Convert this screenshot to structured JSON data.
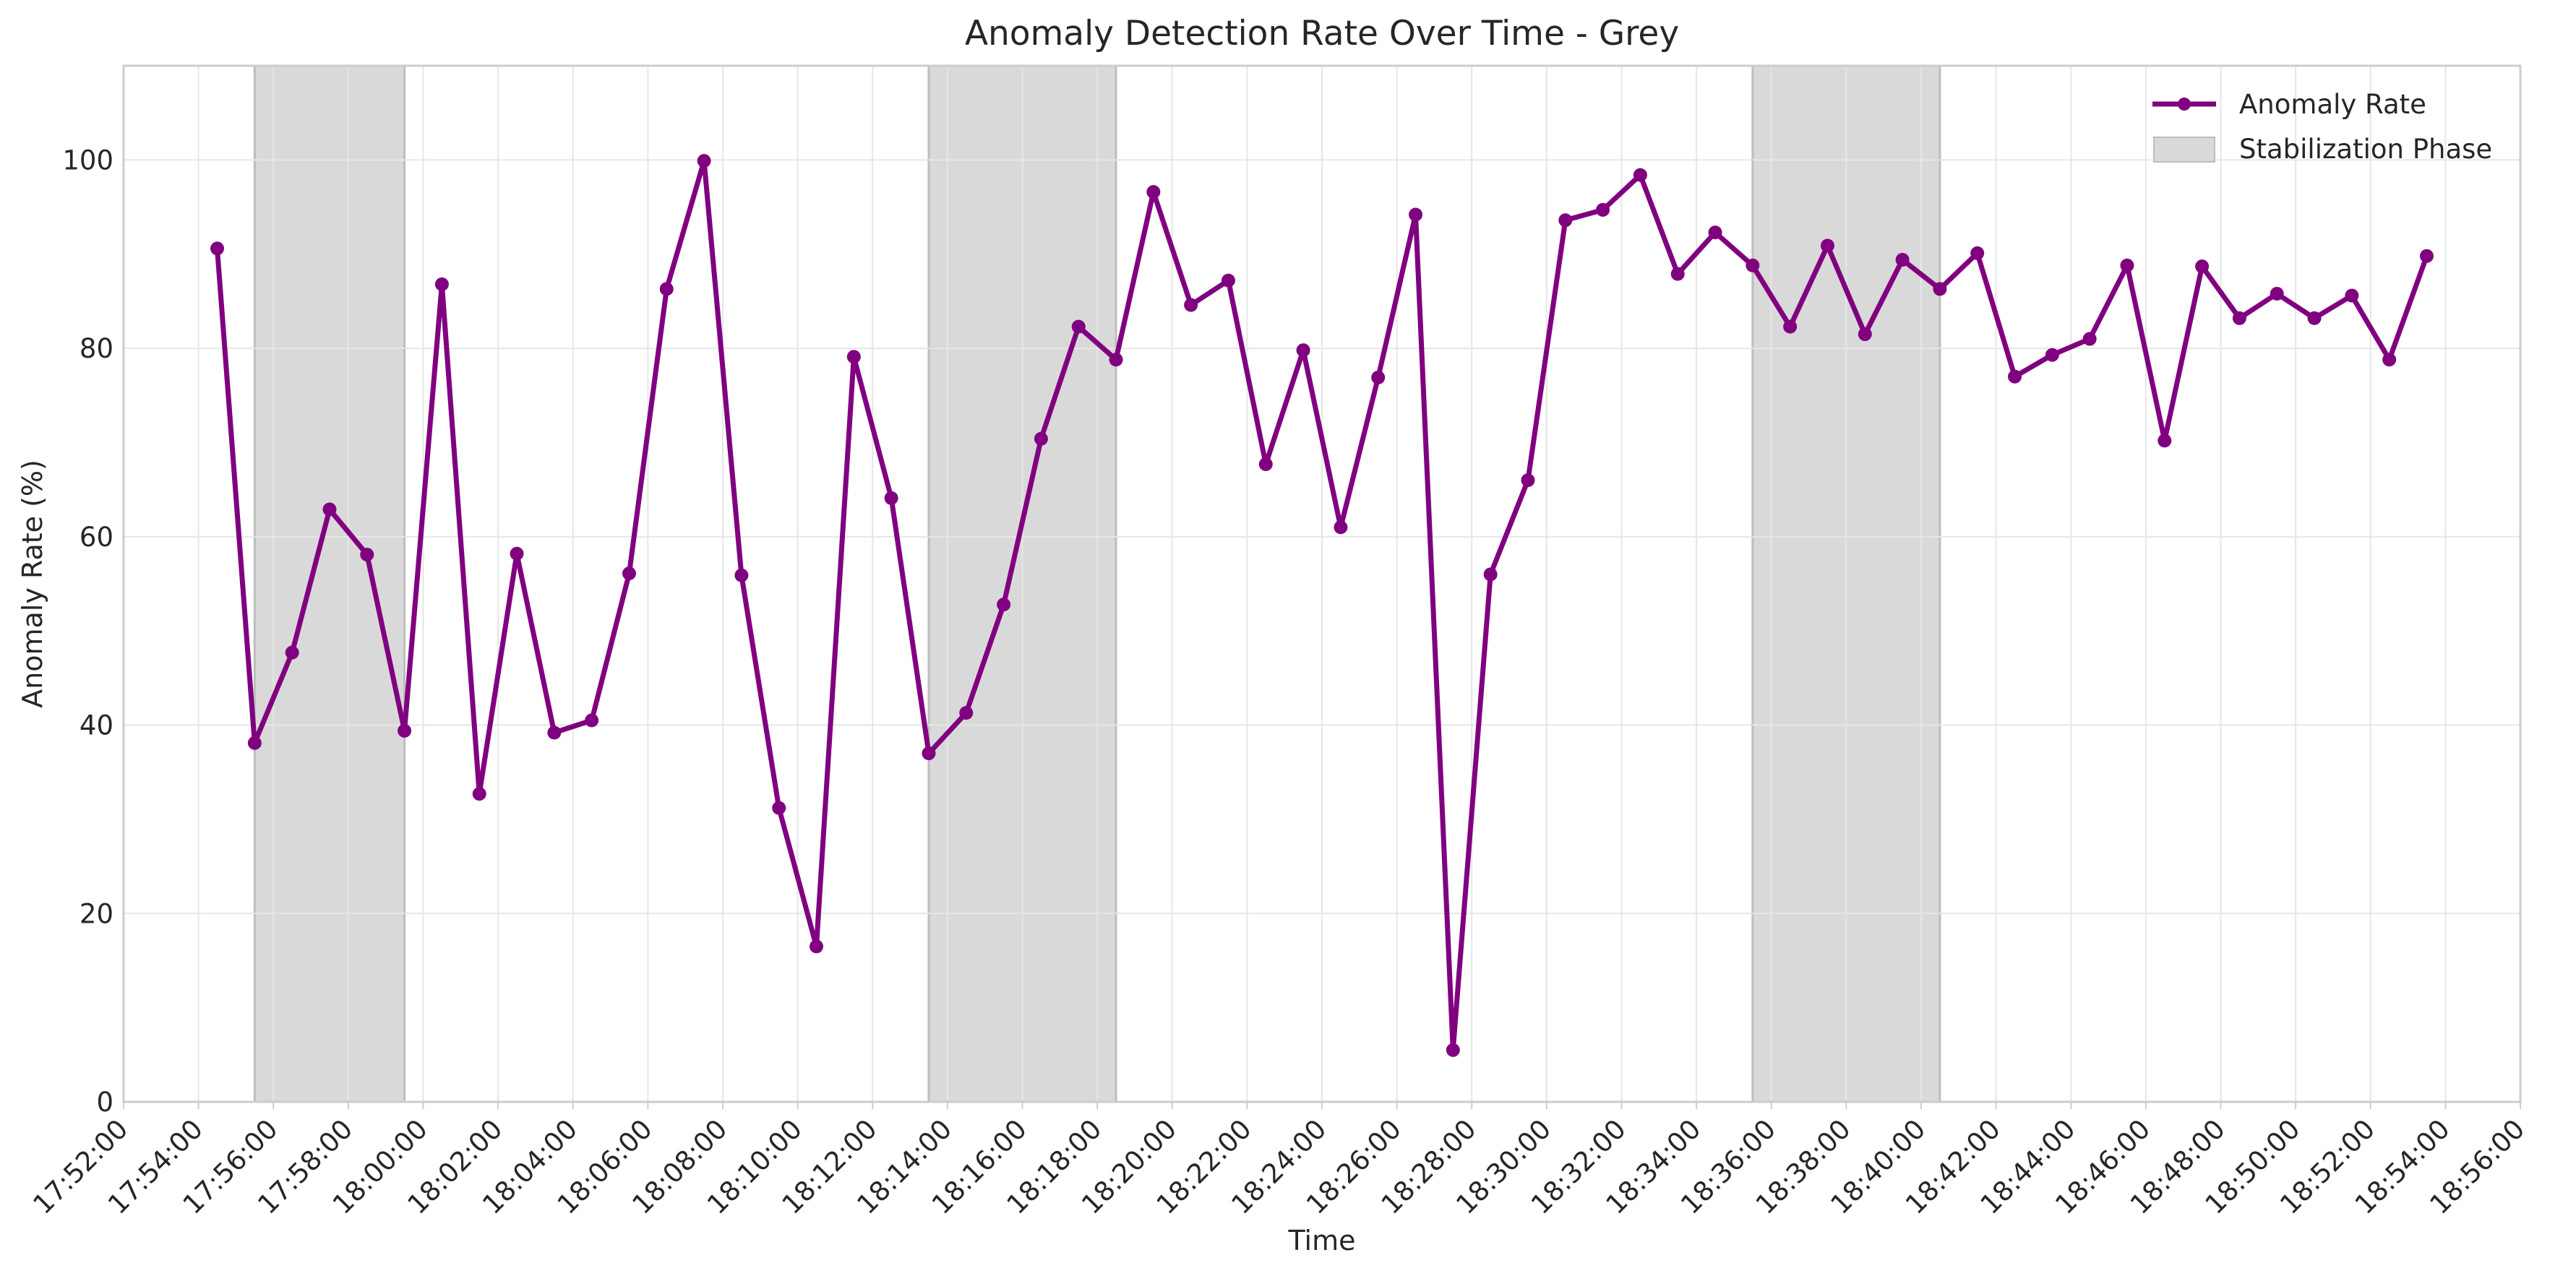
{
  "chart_data": {
    "type": "line",
    "title": "Anomaly Detection Rate Over Time - Grey",
    "xlabel": "Time",
    "ylabel": "Anomaly Rate (%)",
    "xlim": [
      "17:52:00",
      "18:56:00"
    ],
    "ylim": [
      0,
      110
    ],
    "x_ticks": [
      "17:52:00",
      "17:54:00",
      "17:56:00",
      "17:58:00",
      "18:00:00",
      "18:02:00",
      "18:04:00",
      "18:06:00",
      "18:08:00",
      "18:10:00",
      "18:12:00",
      "18:14:00",
      "18:16:00",
      "18:18:00",
      "18:20:00",
      "18:22:00",
      "18:24:00",
      "18:26:00",
      "18:28:00",
      "18:30:00",
      "18:32:00",
      "18:34:00",
      "18:36:00",
      "18:38:00",
      "18:40:00",
      "18:42:00",
      "18:44:00",
      "18:46:00",
      "18:48:00",
      "18:50:00",
      "18:52:00",
      "18:54:00",
      "18:56:00"
    ],
    "y_ticks": [
      0,
      20,
      40,
      60,
      80,
      100
    ],
    "grid": true,
    "legend_position": "top-right",
    "colors": {
      "line": "#800080",
      "shade": "#d9d9d9",
      "shade_edge": "#bdbdbd",
      "grid": "#e6e6e6",
      "axis": "#cccccc",
      "text": "#262626"
    },
    "series": [
      {
        "name": "Anomaly Rate",
        "x": [
          "17:54:30",
          "17:55:30",
          "17:56:30",
          "17:57:30",
          "17:58:30",
          "17:59:30",
          "18:00:30",
          "18:01:30",
          "18:02:30",
          "18:03:30",
          "18:04:30",
          "18:05:30",
          "18:06:30",
          "18:07:30",
          "18:08:30",
          "18:09:30",
          "18:10:30",
          "18:11:30",
          "18:12:30",
          "18:13:30",
          "18:14:30",
          "18:15:30",
          "18:16:30",
          "18:17:30",
          "18:18:30",
          "18:19:30",
          "18:20:30",
          "18:21:30",
          "18:22:30",
          "18:23:30",
          "18:24:30",
          "18:25:30",
          "18:26:30",
          "18:27:30",
          "18:28:30",
          "18:29:30",
          "18:30:30",
          "18:31:30",
          "18:32:30",
          "18:33:30",
          "18:34:30",
          "18:35:30",
          "18:36:30",
          "18:37:30",
          "18:38:30",
          "18:39:30",
          "18:40:30",
          "18:41:30",
          "18:42:30",
          "18:43:30",
          "18:44:30",
          "18:45:30",
          "18:46:30",
          "18:47:30",
          "18:48:30",
          "18:49:30",
          "18:50:30",
          "18:51:30",
          "18:52:30",
          "18:53:30"
        ],
        "values": [
          90.6,
          38.1,
          47.7,
          62.9,
          58.1,
          39.4,
          86.8,
          32.7,
          58.2,
          39.2,
          40.5,
          56.1,
          86.3,
          99.9,
          55.9,
          31.2,
          16.5,
          79.1,
          64.1,
          37.0,
          41.3,
          52.8,
          70.4,
          82.3,
          78.8,
          96.6,
          84.6,
          87.2,
          67.7,
          79.8,
          61.0,
          76.9,
          94.2,
          5.5,
          56.0,
          66.0,
          93.6,
          94.7,
          98.4,
          87.9,
          92.3,
          88.8,
          82.3,
          90.9,
          81.5,
          89.4,
          86.3,
          90.1,
          77.0,
          79.3,
          81.0,
          88.8,
          70.2,
          88.7,
          83.2,
          85.8,
          83.2,
          85.6,
          78.8,
          89.8
        ]
      }
    ],
    "shaded_regions": [
      {
        "name": "Stabilization Phase",
        "start": "17:55:30",
        "end": "17:59:30"
      },
      {
        "name": "Stabilization Phase",
        "start": "18:13:30",
        "end": "18:18:30"
      },
      {
        "name": "Stabilization Phase",
        "start": "18:35:30",
        "end": "18:40:30"
      }
    ],
    "legend": [
      {
        "label": "Anomaly Rate",
        "kind": "line"
      },
      {
        "label": "Stabilization Phase",
        "kind": "patch"
      }
    ]
  }
}
